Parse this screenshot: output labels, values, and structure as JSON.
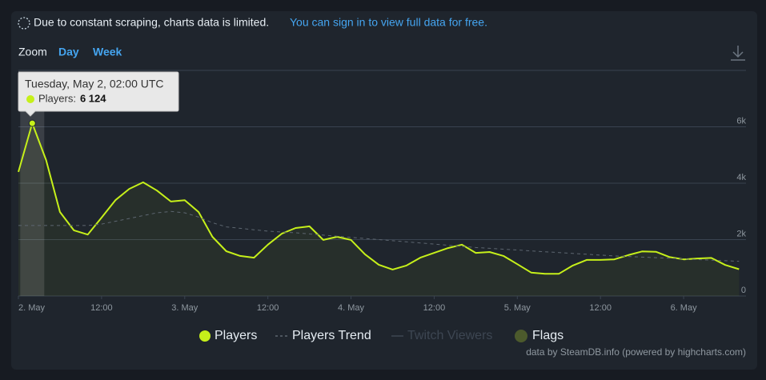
{
  "chart_data": {
    "type": "line",
    "notice": "Due to constant scraping, charts data is limited.",
    "notice_link": "You can sign in to view full data for free.",
    "zoom_label": "Zoom",
    "zoom_options": [
      "Day",
      "Week"
    ],
    "credits": "data by SteamDB.info (powered by highcharts.com)",
    "x": [
      0,
      2,
      4,
      6,
      8,
      10,
      12,
      14,
      16,
      18,
      20,
      22,
      24,
      26,
      28,
      30,
      32,
      34,
      36,
      38,
      40,
      42,
      44,
      46,
      48,
      50,
      52,
      54,
      56,
      58,
      60,
      62,
      64,
      66,
      68,
      70,
      72,
      74,
      76,
      78,
      80,
      82,
      84,
      86,
      88,
      90,
      92,
      94,
      96,
      98,
      100,
      102,
      104
    ],
    "xlim": [
      0,
      105
    ],
    "xticks": [
      {
        "value": 0,
        "label": "2. May"
      },
      {
        "value": 12,
        "label": "12:00"
      },
      {
        "value": 24,
        "label": "3. May"
      },
      {
        "value": 36,
        "label": "12:00"
      },
      {
        "value": 48,
        "label": "4. May"
      },
      {
        "value": 60,
        "label": "12:00"
      },
      {
        "value": 72,
        "label": "5. May"
      },
      {
        "value": 84,
        "label": "12:00"
      },
      {
        "value": 96,
        "label": "6. May"
      }
    ],
    "ylim": [
      0,
      8000
    ],
    "yticks": [
      0,
      {
        "value": 2000,
        "label": "2k"
      },
      {
        "value": 4000,
        "label": "4k"
      },
      {
        "value": 6000,
        "label": "6k"
      }
    ],
    "grid": true,
    "series": [
      {
        "name": "Players",
        "color": "#c6f01a",
        "values": [
          4400,
          6124,
          4820,
          2980,
          2330,
          2180,
          2780,
          3400,
          3800,
          4030,
          3740,
          3350,
          3400,
          2980,
          2100,
          1590,
          1420,
          1360,
          1820,
          2210,
          2410,
          2470,
          1990,
          2100,
          1990,
          1480,
          1110,
          940,
          1080,
          1360,
          1530,
          1700,
          1820,
          1530,
          1560,
          1420,
          1130,
          830,
          790,
          790,
          1080,
          1280,
          1280,
          1300,
          1450,
          1580,
          1570,
          1380,
          1300,
          1330,
          1350,
          1100,
          950
        ]
      },
      {
        "name": "Players Trend",
        "color": "#5d6670",
        "dashed": true,
        "values": [
          2500,
          2500,
          2500,
          2500,
          2500,
          2500,
          2550,
          2650,
          2750,
          2850,
          2950,
          3000,
          2950,
          2800,
          2600,
          2450,
          2400,
          2350,
          2300,
          2270,
          2240,
          2200,
          2160,
          2120,
          2080,
          2040,
          2000,
          1960,
          1920,
          1880,
          1840,
          1800,
          1760,
          1720,
          1690,
          1660,
          1630,
          1600,
          1570,
          1540,
          1510,
          1480,
          1450,
          1420,
          1400,
          1380,
          1360,
          1340,
          1310,
          1290,
          1270,
          1250,
          1230
        ]
      }
    ],
    "inactive_legend": [
      {
        "name": "Twitch Viewers",
        "color": "#3d4652"
      },
      {
        "name": "Flags",
        "color": "#4c5a2c"
      }
    ],
    "tooltip": {
      "title": "Tuesday, May 2, 02:00 UTC",
      "series_label": "Players:",
      "value_label": "6 124",
      "index": 1
    }
  }
}
